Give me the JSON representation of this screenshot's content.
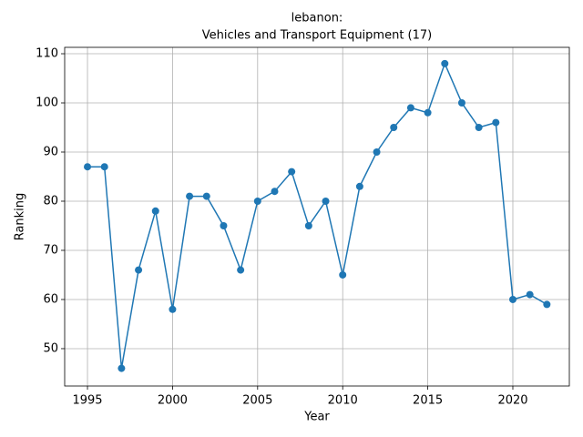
{
  "chart_data": {
    "type": "line",
    "title": [
      "lebanon:",
      "Vehicles and Transport Equipment (17)"
    ],
    "x_label": "Year",
    "y_label": "Ranking",
    "x": [
      1995,
      1996,
      1997,
      1998,
      1999,
      2000,
      2001,
      2002,
      2003,
      2004,
      2005,
      2006,
      2007,
      2008,
      2009,
      2010,
      2011,
      2012,
      2013,
      2014,
      2015,
      2016,
      2017,
      2018,
      2019,
      2020,
      2021,
      2022
    ],
    "series": [
      {
        "color": "#1f77b4",
        "values": [
          87,
          87,
          46,
          66,
          78,
          58,
          81,
          81,
          75,
          66,
          80,
          82,
          86,
          75,
          80,
          65,
          83,
          90,
          95,
          99,
          98,
          108,
          100,
          95,
          96,
          60,
          61,
          59
        ]
      }
    ],
    "xlim": [
      1993.66,
      2023.32
    ],
    "xticks": [
      1995,
      2000,
      2005,
      2010,
      2015,
      2020
    ],
    "ylim": [
      42.4,
      111.3
    ],
    "yticks": [
      50,
      60,
      70,
      80,
      90,
      100,
      110
    ],
    "grid": true
  }
}
